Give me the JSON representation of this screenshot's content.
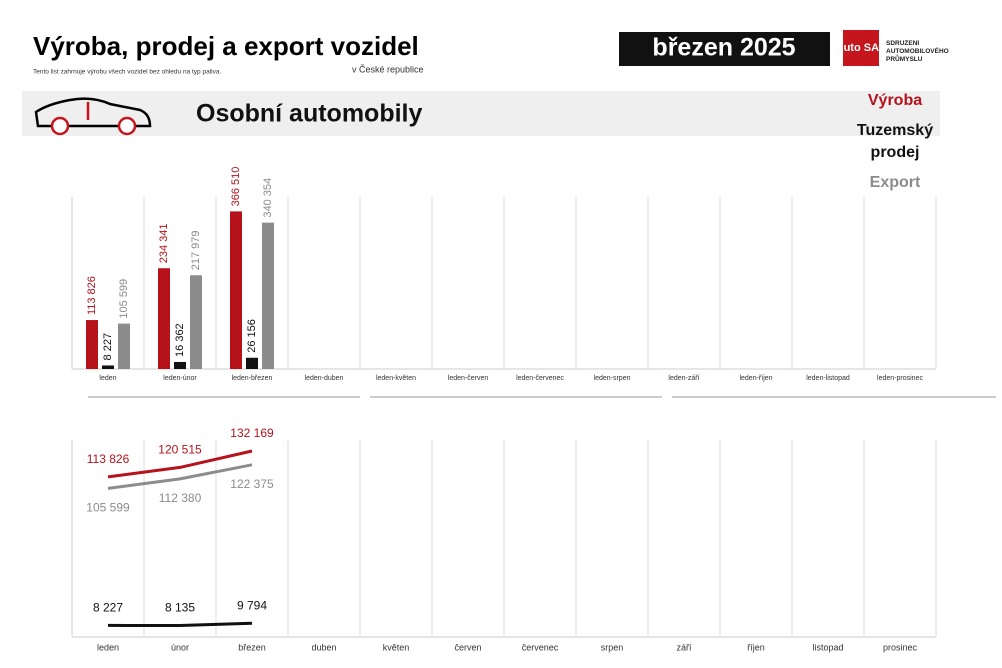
{
  "header": {
    "title": "Výroba, prodej a export vozidel",
    "subtitle": "Tento list zahrnuje výrobu všech vozidel bez ohledu na typ paliva.",
    "region": "v České republice",
    "period": "březen 2025",
    "logo": "Auto SAP",
    "logo_text": "SDRUŽENÍ AUTOMOBILOVÉHO PRŮMYSLU",
    "section": "Osobní automobily"
  },
  "chart_data": [
    {
      "type": "bar",
      "categories": [
        "leden",
        "leden-únor",
        "leden-březen",
        "leden-duben",
        "leden-květen",
        "leden-červen",
        "leden-červenec",
        "leden-srpen",
        "leden-září",
        "leden-říjen",
        "leden-listopad",
        "leden-prosinec"
      ],
      "ylim": [
        0,
        400000
      ],
      "series": [
        {
          "name": "Výroba",
          "color": "#b5121b",
          "values": [
            113826,
            234341,
            366510,
            null,
            null,
            null,
            null,
            null,
            null,
            null,
            null,
            null
          ],
          "value_labels": [
            "113 826",
            "234 341",
            "366 510",
            null,
            null,
            null,
            null,
            null,
            null,
            null,
            null,
            null
          ]
        },
        {
          "name": "Tuzemský prodej",
          "color": "#111111",
          "values": [
            8227,
            16362,
            26156,
            null,
            null,
            null,
            null,
            null,
            null,
            null,
            null,
            null
          ],
          "value_labels": [
            "8 227",
            "16 362",
            "26 156",
            null,
            null,
            null,
            null,
            null,
            null,
            null,
            null,
            null
          ]
        },
        {
          "name": "Export",
          "color": "#8c8c8c",
          "values": [
            105599,
            217979,
            340354,
            null,
            null,
            null,
            null,
            null,
            null,
            null,
            null,
            null
          ],
          "value_labels": [
            "105 599",
            "217 979",
            "340 354",
            null,
            null,
            null,
            null,
            null,
            null,
            null,
            null,
            null
          ]
        }
      ]
    },
    {
      "type": "line",
      "categories": [
        "leden",
        "únor",
        "březen",
        "duben",
        "květen",
        "červen",
        "červenec",
        "srpen",
        "září",
        "říjen",
        "listopad",
        "prosinec"
      ],
      "ylim": [
        0,
        140000
      ],
      "series": [
        {
          "color": "#b5121b",
          "values": [
            113826,
            120515,
            132169,
            null,
            null,
            null,
            null,
            null,
            null,
            null,
            null,
            null
          ],
          "value_labels": [
            "113 826",
            "120 515",
            "132 169",
            null,
            null,
            null,
            null,
            null,
            null,
            null,
            null,
            null
          ]
        },
        {
          "color": "#111111",
          "values": [
            8227,
            8135,
            9794,
            null,
            null,
            null,
            null,
            null,
            null,
            null,
            null,
            null
          ],
          "value_labels": [
            "8 227",
            "8 135",
            "9 794",
            null,
            null,
            null,
            null,
            null,
            null,
            null,
            null,
            null
          ]
        },
        {
          "color": "#8c8c8c",
          "values": [
            105599,
            112380,
            122375,
            null,
            null,
            null,
            null,
            null,
            null,
            null,
            null,
            null
          ],
          "value_labels": [
            "105 599",
            "112 380",
            "122 375",
            null,
            null,
            null,
            null,
            null,
            null,
            null,
            null,
            null
          ]
        }
      ]
    }
  ]
}
